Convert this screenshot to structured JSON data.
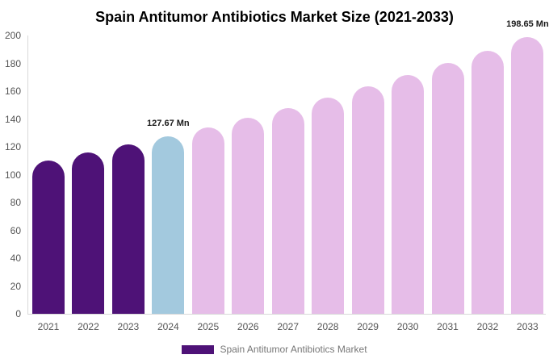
{
  "title": "Spain Antitumor Antibiotics Market Size (2021-2033)",
  "chart_data": {
    "type": "bar",
    "title": "Spain Antitumor Antibiotics Market Size (2021-2033)",
    "categories": [
      "2021",
      "2022",
      "2023",
      "2024",
      "2025",
      "2026",
      "2027",
      "2028",
      "2029",
      "2030",
      "2031",
      "2032",
      "2033"
    ],
    "values": [
      110.1,
      115.7,
      121.5,
      127.67,
      134.1,
      140.9,
      148.0,
      155.4,
      163.3,
      171.5,
      180.1,
      189.2,
      198.65
    ],
    "bar_colors": [
      "#4e1277",
      "#4e1277",
      "#4e1277",
      "#a3c9de",
      "#e6bde8",
      "#e6bde8",
      "#e6bde8",
      "#e6bde8",
      "#e6bde8",
      "#e6bde8",
      "#e6bde8",
      "#e6bde8",
      "#e6bde8"
    ],
    "ylim": [
      0,
      200
    ],
    "yticks": [
      0,
      20,
      40,
      60,
      80,
      100,
      120,
      140,
      160,
      180,
      200
    ],
    "grid": false,
    "xlabel": "",
    "ylabel": "",
    "annotations": [
      {
        "bar_index": 3,
        "text": "127.67 Mn"
      },
      {
        "bar_index": 12,
        "text": "198.65 Mn"
      }
    ],
    "legend": [
      {
        "label": "Spain Antitumor Antibiotics Market",
        "color": "#4e1277"
      }
    ],
    "legend_position": "bottom-center"
  },
  "colors": {
    "historical_bar": "#4e1277",
    "base_year_bar": "#a3c9de",
    "forecast_bar": "#e6bde8",
    "axis_line": "#d9d9d9",
    "tick_label": "#555555",
    "annotation_text": "#1a1a1a",
    "legend_text": "#777777",
    "title_text": "#000000"
  }
}
